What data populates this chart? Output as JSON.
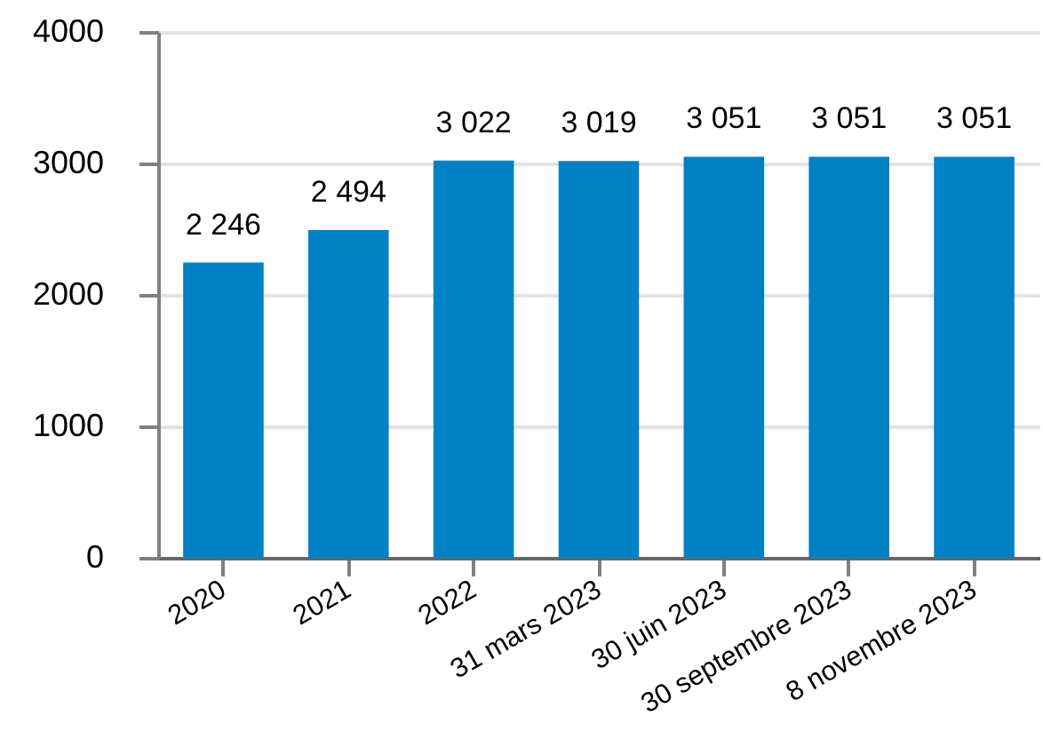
{
  "chart_data": {
    "type": "bar",
    "categories": [
      "2020",
      "2021",
      "2022",
      "31 mars 2023",
      "30 juin 2023",
      "30 septembre 2023",
      "8 novembre 2023"
    ],
    "values": [
      2246,
      2494,
      3022,
      3019,
      3051,
      3051,
      3051
    ],
    "value_labels": [
      "2 246",
      "2 494",
      "3 022",
      "3 019",
      "3 051",
      "3 051",
      "3 051"
    ],
    "color": "#0081c6",
    "ylim": [
      0,
      4000
    ],
    "yticks": [
      0,
      1000,
      2000,
      3000,
      4000
    ],
    "grid": "y"
  }
}
